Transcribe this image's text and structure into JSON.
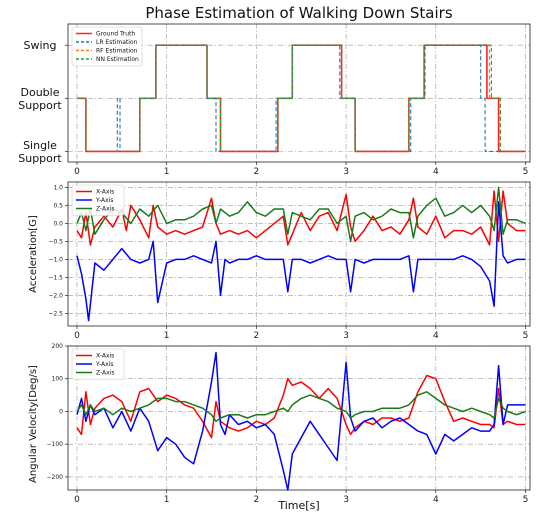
{
  "chart_data": [
    {
      "type": "line",
      "title": "Phase Estimation of Walking Down Stairs",
      "xlabel": "",
      "ylabel": "",
      "xlim": [
        -0.1,
        5.05
      ],
      "ylim": [
        -0.2,
        2.4
      ],
      "x_ticks": [
        0,
        1,
        2,
        3,
        4,
        5
      ],
      "y_tick_values": [
        0,
        1,
        2
      ],
      "y_tick_labels": [
        "Single\nSupport",
        "Double\nSupport",
        "Swing"
      ],
      "grid": true,
      "legend": "top-left",
      "series": [
        {
          "name": "Ground Truth",
          "color": "#ff2020",
          "style": "solid",
          "x": [
            0.0,
            0.1,
            0.1,
            0.7,
            0.7,
            0.88,
            0.88,
            1.45,
            1.45,
            1.6,
            1.6,
            2.24,
            2.24,
            2.4,
            2.4,
            2.95,
            2.95,
            3.1,
            3.1,
            3.7,
            3.7,
            3.87,
            3.87,
            4.57,
            4.57,
            4.7,
            4.7,
            5.0
          ],
          "y": [
            1,
            1,
            0,
            0,
            1,
            1,
            2,
            2,
            1,
            1,
            0,
            0,
            1,
            1,
            2,
            2,
            1,
            1,
            0,
            0,
            1,
            1,
            2,
            2,
            1,
            1,
            0,
            0
          ]
        },
        {
          "name": "LR Estimation",
          "color": "#1f77b4",
          "style": "dashed",
          "x": [
            0.0,
            0.1,
            0.1,
            0.45,
            0.45,
            0.48,
            0.48,
            0.7,
            0.7,
            0.88,
            0.88,
            1.45,
            1.45,
            1.55,
            1.55,
            2.22,
            2.22,
            2.4,
            2.4,
            2.93,
            2.93,
            3.1,
            3.1,
            3.72,
            3.72,
            3.88,
            3.88,
            4.5,
            4.5,
            4.55,
            4.55,
            4.7,
            4.7,
            5.0
          ],
          "y": [
            1,
            1,
            0,
            0,
            1,
            1,
            0,
            0,
            1,
            1,
            2,
            2,
            1,
            1,
            0,
            0,
            1,
            1,
            2,
            2,
            1,
            1,
            0,
            0,
            1,
            1,
            2,
            2,
            1,
            1,
            0,
            0,
            0,
            0
          ]
        },
        {
          "name": "RF Estimation",
          "color": "#ff7f0e",
          "style": "dashed",
          "x": [
            0.0,
            0.1,
            0.1,
            0.7,
            0.7,
            0.88,
            0.88,
            1.45,
            1.45,
            1.6,
            1.6,
            2.24,
            2.24,
            2.4,
            2.4,
            2.95,
            2.95,
            3.1,
            3.1,
            3.7,
            3.7,
            3.87,
            3.87,
            4.6,
            4.6,
            4.72,
            4.72,
            5.0
          ],
          "y": [
            1,
            1,
            0,
            0,
            1,
            1,
            2,
            2,
            1,
            1,
            0,
            0,
            1,
            1,
            2,
            2,
            1,
            1,
            0,
            0,
            1,
            1,
            2,
            2,
            1,
            1,
            0,
            0
          ]
        },
        {
          "name": "NN Estimation",
          "color": "#2ca02c",
          "style": "dashed",
          "x": [
            0.0,
            0.1,
            0.1,
            0.7,
            0.7,
            0.88,
            0.88,
            1.45,
            1.45,
            1.6,
            1.6,
            2.24,
            2.24,
            2.4,
            2.4,
            2.95,
            2.95,
            3.1,
            3.1,
            3.7,
            3.7,
            3.87,
            3.87,
            4.62,
            4.62,
            4.72,
            4.72,
            5.0
          ],
          "y": [
            1,
            1,
            0,
            0,
            1,
            1,
            2,
            2,
            1,
            1,
            0,
            0,
            1,
            1,
            2,
            2,
            1,
            1,
            0,
            0,
            1,
            1,
            2,
            2,
            1,
            1,
            0,
            0
          ]
        }
      ]
    },
    {
      "type": "line",
      "title": "",
      "xlabel": "",
      "ylabel": "Acceleration[G]",
      "xlim": [
        -0.1,
        5.05
      ],
      "ylim": [
        -2.85,
        1.15
      ],
      "x_ticks": [
        0,
        1,
        2,
        3,
        4,
        5
      ],
      "y_ticks": [
        -2.5,
        -2.0,
        -1.5,
        -1.0,
        -0.5,
        0.0,
        0.5,
        1.0
      ],
      "y_tick_labels": [
        "−2.5",
        "−2.0",
        "−1.5",
        "−1.0",
        "−0.5",
        "0.0",
        "0.5",
        "1.0"
      ],
      "grid": true,
      "legend": "top-left",
      "series": [
        {
          "name": "X-Axis",
          "color": "#ff0000",
          "x": [
            0,
            0.05,
            0.1,
            0.15,
            0.2,
            0.3,
            0.4,
            0.5,
            0.55,
            0.6,
            0.7,
            0.8,
            0.85,
            0.9,
            1.0,
            1.1,
            1.2,
            1.3,
            1.4,
            1.5,
            1.55,
            1.6,
            1.7,
            1.8,
            1.9,
            2.0,
            2.1,
            2.2,
            2.3,
            2.35,
            2.4,
            2.5,
            2.6,
            2.7,
            2.8,
            2.9,
            3.0,
            3.05,
            3.1,
            3.2,
            3.3,
            3.4,
            3.5,
            3.6,
            3.7,
            3.75,
            3.8,
            3.9,
            4.0,
            4.1,
            4.2,
            4.3,
            4.4,
            4.5,
            4.6,
            4.65,
            4.7,
            4.75,
            4.8,
            4.9,
            5.0
          ],
          "y": [
            -0.2,
            -0.4,
            0.3,
            -0.6,
            -0.1,
            0.2,
            -0.1,
            0.4,
            -0.2,
            0.5,
            0.1,
            -0.4,
            0.5,
            -0.1,
            -0.3,
            -0.2,
            -0.3,
            -0.2,
            -0.1,
            0.7,
            0.0,
            -0.3,
            -0.2,
            -0.3,
            -0.2,
            -0.4,
            -0.2,
            0.0,
            0.2,
            -0.6,
            -0.3,
            0.3,
            -0.2,
            0.2,
            0.3,
            -0.2,
            0.8,
            -0.1,
            -0.5,
            -0.2,
            0.2,
            -0.2,
            -0.1,
            -0.3,
            0.1,
            0.7,
            -0.1,
            -0.3,
            0.2,
            -0.4,
            -0.2,
            -0.2,
            -0.3,
            -0.1,
            -0.6,
            0.9,
            -0.5,
            0.9,
            0.0,
            -0.2,
            -0.2
          ]
        },
        {
          "name": "Y-Axis",
          "color": "#0000ff",
          "x": [
            0,
            0.05,
            0.1,
            0.13,
            0.2,
            0.3,
            0.4,
            0.5,
            0.6,
            0.7,
            0.8,
            0.85,
            0.9,
            1.0,
            1.1,
            1.2,
            1.3,
            1.4,
            1.5,
            1.55,
            1.6,
            1.65,
            1.7,
            1.8,
            1.9,
            2.0,
            2.1,
            2.2,
            2.3,
            2.35,
            2.4,
            2.5,
            2.6,
            2.7,
            2.8,
            2.9,
            3.0,
            3.05,
            3.1,
            3.2,
            3.3,
            3.4,
            3.5,
            3.6,
            3.7,
            3.75,
            3.8,
            3.9,
            4.0,
            4.1,
            4.2,
            4.3,
            4.4,
            4.5,
            4.6,
            4.65,
            4.7,
            4.75,
            4.8,
            4.9,
            5.0
          ],
          "y": [
            -0.9,
            -1.4,
            -2.1,
            -2.7,
            -1.1,
            -1.3,
            -1.0,
            -0.7,
            -1.0,
            -1.1,
            -1.0,
            -0.5,
            -2.2,
            -1.1,
            -1.0,
            -1.0,
            -0.9,
            -1.0,
            -1.1,
            -0.5,
            -2.0,
            -1.0,
            -1.1,
            -1.0,
            -1.0,
            -0.9,
            -1.0,
            -1.0,
            -1.0,
            -1.9,
            -1.0,
            -1.0,
            -1.1,
            -1.0,
            -0.9,
            -1.0,
            -1.0,
            -1.9,
            -1.0,
            -1.1,
            -1.0,
            -1.0,
            -1.0,
            -1.0,
            -0.9,
            -1.9,
            -1.0,
            -1.0,
            -1.0,
            -1.0,
            -1.0,
            -0.9,
            -1.0,
            -1.2,
            -1.6,
            -2.3,
            0.6,
            -0.9,
            -1.1,
            -1.0,
            -1.0
          ]
        },
        {
          "name": "Z-Axis",
          "color": "#1a7a1a",
          "x": [
            0,
            0.05,
            0.1,
            0.15,
            0.2,
            0.3,
            0.4,
            0.5,
            0.6,
            0.7,
            0.8,
            0.9,
            1.0,
            1.1,
            1.2,
            1.3,
            1.4,
            1.5,
            1.55,
            1.6,
            1.7,
            1.8,
            1.9,
            2.0,
            2.1,
            2.2,
            2.3,
            2.35,
            2.4,
            2.5,
            2.6,
            2.7,
            2.8,
            2.9,
            3.0,
            3.05,
            3.1,
            3.2,
            3.3,
            3.4,
            3.5,
            3.6,
            3.7,
            3.75,
            3.8,
            3.9,
            4.0,
            4.1,
            4.2,
            4.3,
            4.4,
            4.5,
            4.6,
            4.65,
            4.7,
            4.75,
            4.8,
            4.9,
            5.0
          ],
          "y": [
            0.0,
            0.3,
            -0.2,
            0.4,
            -0.3,
            0.1,
            0.4,
            0.3,
            0.0,
            0.4,
            0.2,
            0.5,
            0.0,
            0.1,
            0.1,
            0.2,
            0.4,
            0.5,
            0.0,
            0.4,
            0.2,
            0.3,
            0.6,
            0.3,
            0.2,
            0.4,
            0.4,
            -0.3,
            0.3,
            0.2,
            0.1,
            0.4,
            0.4,
            0.0,
            0.2,
            -0.5,
            0.2,
            0.3,
            0.1,
            0.2,
            0.4,
            0.3,
            0.3,
            -0.4,
            0.2,
            0.5,
            0.7,
            0.2,
            0.3,
            0.5,
            0.3,
            0.5,
            0.2,
            -0.2,
            1.0,
            -0.3,
            0.1,
            0.1,
            0.0
          ]
        }
      ]
    },
    {
      "type": "line",
      "title": "",
      "xlabel": "Time[s]",
      "ylabel": "Angular Velocity[Deg/s]",
      "xlim": [
        -0.1,
        5.05
      ],
      "ylim": [
        -240,
        200
      ],
      "x_ticks": [
        0,
        1,
        2,
        3,
        4,
        5
      ],
      "y_ticks": [
        -200,
        -100,
        0,
        100,
        200
      ],
      "y_tick_labels": [
        "−200",
        "−100",
        "0",
        "100",
        "200"
      ],
      "grid": true,
      "legend": "top-left",
      "series": [
        {
          "name": "X-Axis",
          "color": "#ff0000",
          "x": [
            0,
            0.05,
            0.1,
            0.15,
            0.2,
            0.3,
            0.4,
            0.5,
            0.6,
            0.7,
            0.8,
            0.9,
            1.0,
            1.1,
            1.2,
            1.3,
            1.4,
            1.5,
            1.55,
            1.6,
            1.7,
            1.8,
            1.9,
            2.0,
            2.1,
            2.2,
            2.3,
            2.35,
            2.4,
            2.5,
            2.6,
            2.7,
            2.8,
            2.9,
            3.0,
            3.05,
            3.1,
            3.2,
            3.3,
            3.4,
            3.5,
            3.6,
            3.7,
            3.8,
            3.9,
            4.0,
            4.1,
            4.2,
            4.3,
            4.4,
            4.5,
            4.6,
            4.65,
            4.7,
            4.75,
            4.8,
            4.9,
            5.0
          ],
          "y": [
            -50,
            -70,
            60,
            -40,
            10,
            40,
            50,
            30,
            -30,
            60,
            70,
            30,
            50,
            40,
            20,
            10,
            -30,
            -80,
            30,
            -30,
            -50,
            -60,
            -50,
            -30,
            -40,
            -20,
            50,
            100,
            80,
            90,
            70,
            40,
            70,
            40,
            -40,
            -70,
            -50,
            -30,
            -40,
            -20,
            -20,
            -30,
            -20,
            60,
            110,
            100,
            30,
            -30,
            -20,
            -30,
            -40,
            -40,
            -50,
            70,
            -40,
            -30,
            -40,
            -40
          ]
        },
        {
          "name": "Y-Axis",
          "color": "#0000ff",
          "x": [
            0,
            0.05,
            0.1,
            0.15,
            0.2,
            0.3,
            0.4,
            0.5,
            0.6,
            0.7,
            0.8,
            0.9,
            1.0,
            1.1,
            1.2,
            1.3,
            1.4,
            1.5,
            1.55,
            1.6,
            1.65,
            1.7,
            1.8,
            1.9,
            2.0,
            2.1,
            2.2,
            2.3,
            2.35,
            2.4,
            2.5,
            2.6,
            2.7,
            2.8,
            2.9,
            3.0,
            3.05,
            3.1,
            3.2,
            3.3,
            3.4,
            3.5,
            3.6,
            3.7,
            3.8,
            3.9,
            4.0,
            4.1,
            4.2,
            4.3,
            4.4,
            4.5,
            4.6,
            4.65,
            4.7,
            4.75,
            4.8,
            4.9,
            5.0
          ],
          "y": [
            -10,
            40,
            -30,
            20,
            -10,
            10,
            -50,
            0,
            -60,
            10,
            -30,
            -120,
            -80,
            -100,
            -140,
            -160,
            -60,
            90,
            180,
            -40,
            -70,
            -10,
            -40,
            -30,
            -50,
            -40,
            -70,
            -180,
            -240,
            -130,
            -80,
            -30,
            -70,
            -110,
            -150,
            150,
            -20,
            -60,
            -30,
            -20,
            -50,
            -30,
            -20,
            -40,
            -60,
            -70,
            -130,
            -70,
            -90,
            -70,
            -50,
            -60,
            -60,
            -40,
            140,
            -40,
            20,
            20,
            20
          ]
        },
        {
          "name": "Z-Axis",
          "color": "#1a7a1a",
          "x": [
            0,
            0.05,
            0.1,
            0.15,
            0.2,
            0.3,
            0.4,
            0.5,
            0.6,
            0.7,
            0.8,
            0.9,
            1.0,
            1.1,
            1.2,
            1.3,
            1.4,
            1.5,
            1.55,
            1.6,
            1.7,
            1.8,
            1.9,
            2.0,
            2.1,
            2.2,
            2.3,
            2.35,
            2.4,
            2.5,
            2.6,
            2.7,
            2.8,
            2.9,
            3.0,
            3.05,
            3.1,
            3.2,
            3.3,
            3.4,
            3.5,
            3.6,
            3.7,
            3.8,
            3.9,
            4.0,
            4.1,
            4.2,
            4.3,
            4.4,
            4.5,
            4.6,
            4.65,
            4.7,
            4.75,
            4.8,
            4.9,
            5.0
          ],
          "y": [
            0,
            20,
            -10,
            20,
            0,
            10,
            -10,
            10,
            0,
            10,
            20,
            40,
            40,
            30,
            30,
            20,
            10,
            -10,
            -30,
            -20,
            -10,
            -10,
            -20,
            -10,
            -10,
            0,
            10,
            0,
            20,
            40,
            50,
            40,
            30,
            10,
            0,
            -20,
            -10,
            0,
            0,
            10,
            10,
            10,
            20,
            50,
            60,
            40,
            20,
            10,
            0,
            10,
            0,
            -10,
            -20,
            40,
            10,
            0,
            -10,
            0
          ]
        }
      ]
    }
  ]
}
